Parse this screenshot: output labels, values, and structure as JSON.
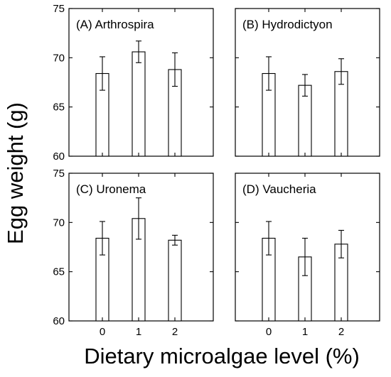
{
  "figure": {
    "ylabel": "Egg weight (g)",
    "xlabel": "Dietary microalgae level (%)"
  },
  "chart_data": [
    {
      "type": "bar",
      "title": "(A) Arthrospira",
      "categories": [
        "0",
        "1",
        "2"
      ],
      "values": [
        68.4,
        70.6,
        68.8
      ],
      "errors": [
        1.7,
        1.1,
        1.7
      ],
      "ylim": [
        60,
        75
      ],
      "yticks": [
        60,
        65,
        70,
        75
      ],
      "grid": false
    },
    {
      "type": "bar",
      "title": "(B) Hydrodictyon",
      "categories": [
        "0",
        "1",
        "2"
      ],
      "values": [
        68.4,
        67.2,
        68.6
      ],
      "errors": [
        1.7,
        1.1,
        1.3
      ],
      "ylim": [
        60,
        75
      ],
      "yticks": [
        60,
        65,
        70,
        75
      ],
      "grid": false
    },
    {
      "type": "bar",
      "title": "(C) Uronema",
      "categories": [
        "0",
        "1",
        "2"
      ],
      "values": [
        68.4,
        70.4,
        68.2
      ],
      "errors": [
        1.7,
        2.1,
        0.5
      ],
      "ylim": [
        60,
        75
      ],
      "yticks": [
        60,
        65,
        70,
        75
      ],
      "grid": false
    },
    {
      "type": "bar",
      "title": "(D) Vaucheria",
      "categories": [
        "0",
        "1",
        "2"
      ],
      "values": [
        68.4,
        66.5,
        67.8
      ],
      "errors": [
        1.7,
        1.9,
        1.4
      ],
      "ylim": [
        60,
        75
      ],
      "yticks": [
        60,
        65,
        70,
        75
      ],
      "grid": false
    }
  ]
}
